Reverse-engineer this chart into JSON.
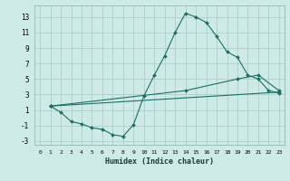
{
  "xlabel": "Humidex (Indice chaleur)",
  "ylabel": "",
  "bg_color": "#ceeae6",
  "grid_color": "#aacfcb",
  "line_color": "#1a6e64",
  "xlim": [
    -0.5,
    23.5
  ],
  "ylim": [
    -3.5,
    14.5
  ],
  "xticks": [
    0,
    1,
    2,
    3,
    4,
    5,
    6,
    7,
    8,
    9,
    10,
    11,
    12,
    13,
    14,
    15,
    16,
    17,
    18,
    19,
    20,
    21,
    22,
    23
  ],
  "yticks": [
    -3,
    -1,
    1,
    3,
    5,
    7,
    9,
    11,
    13
  ],
  "series": [
    {
      "x": [
        1,
        2,
        3,
        4,
        5,
        6,
        7,
        8,
        9,
        10,
        11,
        12,
        13,
        14,
        15,
        16,
        17,
        18,
        19,
        20,
        21,
        22,
        23
      ],
      "y": [
        1.5,
        0.7,
        -0.5,
        -0.8,
        -1.3,
        -1.5,
        -2.2,
        -2.4,
        -0.9,
        2.8,
        5.5,
        8.0,
        11.0,
        13.5,
        13.0,
        12.3,
        10.5,
        8.5,
        7.8,
        5.5,
        5.0,
        3.5,
        3.2
      ]
    },
    {
      "x": [
        1,
        23
      ],
      "y": [
        1.5,
        3.3
      ]
    },
    {
      "x": [
        1,
        14,
        19,
        21,
        23
      ],
      "y": [
        1.5,
        3.5,
        5.0,
        5.5,
        3.5
      ]
    }
  ]
}
